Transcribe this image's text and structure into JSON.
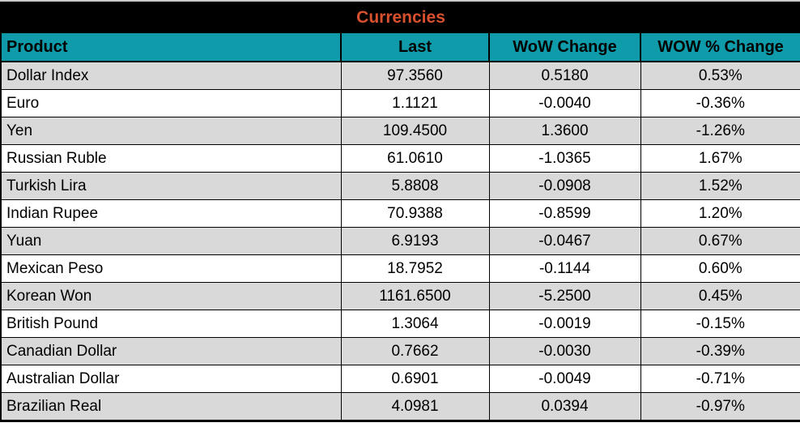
{
  "title": "Currencies",
  "columns": [
    {
      "label": "Product"
    },
    {
      "label": "Last"
    },
    {
      "label": "WoW Change"
    },
    {
      "label": "WOW % Change"
    }
  ],
  "rows": [
    {
      "product": "Dollar Index",
      "last": "97.3560",
      "wow_change": "0.5180",
      "wow_pct_change": "0.53%"
    },
    {
      "product": "Euro",
      "last": "1.1121",
      "wow_change": "-0.0040",
      "wow_pct_change": "-0.36%"
    },
    {
      "product": "Yen",
      "last": "109.4500",
      "wow_change": "1.3600",
      "wow_pct_change": "-1.26%"
    },
    {
      "product": "Russian Ruble",
      "last": "61.0610",
      "wow_change": "-1.0365",
      "wow_pct_change": "1.67%"
    },
    {
      "product": "Turkish Lira",
      "last": "5.8808",
      "wow_change": "-0.0908",
      "wow_pct_change": "1.52%"
    },
    {
      "product": "Indian Rupee",
      "last": "70.9388",
      "wow_change": "-0.8599",
      "wow_pct_change": "1.20%"
    },
    {
      "product": "Yuan",
      "last": "6.9193",
      "wow_change": "-0.0467",
      "wow_pct_change": "0.67%"
    },
    {
      "product": "Mexican Peso",
      "last": "18.7952",
      "wow_change": "-0.1144",
      "wow_pct_change": "0.60%"
    },
    {
      "product": "Korean Won",
      "last": "1161.6500",
      "wow_change": "-5.2500",
      "wow_pct_change": "0.45%"
    },
    {
      "product": "British Pound",
      "last": "1.3064",
      "wow_change": "-0.0019",
      "wow_pct_change": "-0.15%"
    },
    {
      "product": "Canadian Dollar",
      "last": "0.7662",
      "wow_change": "-0.0030",
      "wow_pct_change": "-0.39%"
    },
    {
      "product": "Australian Dollar",
      "last": "0.6901",
      "wow_change": "-0.0049",
      "wow_pct_change": "-0.71%"
    },
    {
      "product": "Brazilian Real",
      "last": "4.0981",
      "wow_change": "0.0394",
      "wow_pct_change": "-0.97%"
    }
  ],
  "colors": {
    "title_bg": "#000000",
    "title_text": "#d8502d",
    "header_bg": "#0f9ba9",
    "header_text": "#000000",
    "row_alt_bg": "#d9d9d9",
    "row_bg": "#ffffff",
    "border": "#000000"
  }
}
